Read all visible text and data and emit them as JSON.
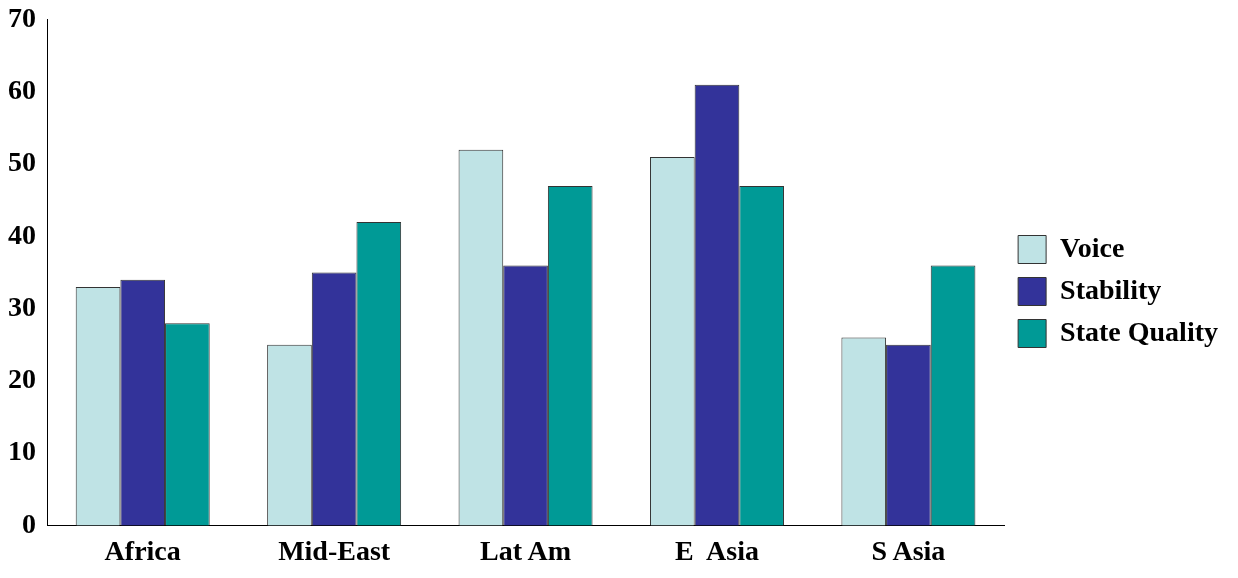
{
  "chart_data": {
    "type": "bar",
    "categories": [
      "Africa",
      "Mid-East",
      "Lat Am",
      "E  Asia",
      "S Asia"
    ],
    "series": [
      {
        "name": "Voice",
        "color": "#bfe3e5",
        "values": [
          33,
          25,
          52,
          51,
          26
        ]
      },
      {
        "name": "Stability",
        "color": "#33339a",
        "values": [
          34,
          35,
          36,
          61,
          25
        ]
      },
      {
        "name": "State Quality",
        "color": "#009a96",
        "values": [
          28,
          42,
          47,
          47,
          36
        ]
      }
    ],
    "ylim": [
      0,
      70
    ],
    "yticks": [
      0,
      10,
      20,
      30,
      40,
      50,
      60,
      70
    ],
    "grid": false,
    "legend": "right"
  }
}
